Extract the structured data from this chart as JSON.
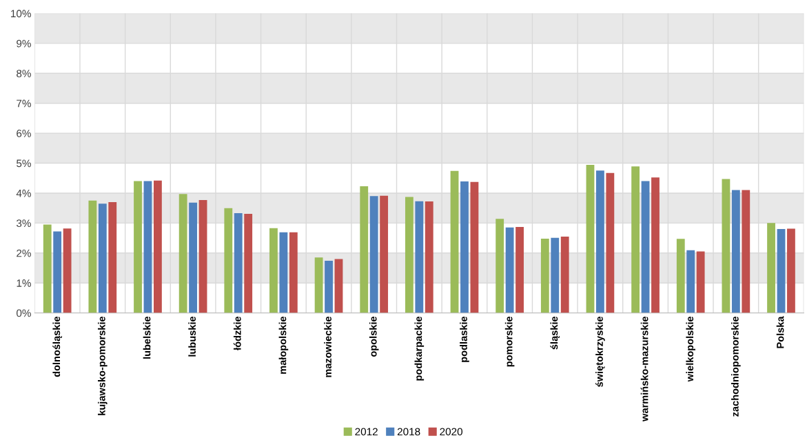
{
  "chart_data": {
    "type": "bar",
    "categories": [
      "dolnośląskie",
      "kujawsko-pomorskie",
      "lubelskie",
      "lubuskie",
      "łódzkie",
      "małopolskie",
      "mazowieckie",
      "opolskie",
      "podkarpackie",
      "podlaskie",
      "pomorskie",
      "śląskie",
      "świętokrzyskie",
      "warmińsko-mazurskie",
      "wielkopolskie",
      "zachodniopomorskie",
      "Polska"
    ],
    "series": [
      {
        "name": "2012",
        "color": "#9bbb59",
        "values": [
          2.95,
          3.75,
          4.4,
          3.97,
          3.5,
          2.83,
          1.85,
          4.23,
          3.87,
          4.74,
          3.14,
          2.48,
          4.94,
          4.89,
          2.47,
          4.47,
          3.0
        ]
      },
      {
        "name": "2018",
        "color": "#4f81bd",
        "values": [
          2.72,
          3.65,
          4.4,
          3.68,
          3.33,
          2.69,
          1.74,
          3.9,
          3.73,
          4.39,
          2.85,
          2.51,
          4.75,
          4.4,
          2.09,
          4.1,
          2.8
        ]
      },
      {
        "name": "2020",
        "color": "#c0504d",
        "values": [
          2.82,
          3.7,
          4.42,
          3.77,
          3.31,
          2.69,
          1.8,
          3.91,
          3.72,
          4.37,
          2.87,
          2.55,
          4.67,
          4.52,
          2.05,
          4.1,
          2.81
        ]
      }
    ],
    "ylim": [
      0,
      10
    ],
    "yticks": [
      {
        "value": 0,
        "label": "0%"
      },
      {
        "value": 1,
        "label": "1%"
      },
      {
        "value": 2,
        "label": "2%"
      },
      {
        "value": 3,
        "label": "3%"
      },
      {
        "value": 4,
        "label": "4%"
      },
      {
        "value": 5,
        "label": "5%"
      },
      {
        "value": 6,
        "label": "6%"
      },
      {
        "value": 7,
        "label": "7%"
      },
      {
        "value": 8,
        "label": "8%"
      },
      {
        "value": 9,
        "label": "9%"
      },
      {
        "value": 10,
        "label": "10%"
      }
    ],
    "bands": [
      {
        "axis": "y",
        "from": 1,
        "to": 2,
        "color": "#e8e8e8"
      },
      {
        "axis": "y",
        "from": 3,
        "to": 4,
        "color": "#e8e8e8"
      },
      {
        "axis": "y",
        "from": 5,
        "to": 6,
        "color": "#e8e8e8"
      },
      {
        "axis": "y",
        "from": 7,
        "to": 8,
        "color": "#e8e8e8"
      },
      {
        "axis": "y",
        "from": 9,
        "to": 10,
        "color": "#e8e8e8"
      }
    ],
    "grid": true,
    "legend": "bottom"
  }
}
